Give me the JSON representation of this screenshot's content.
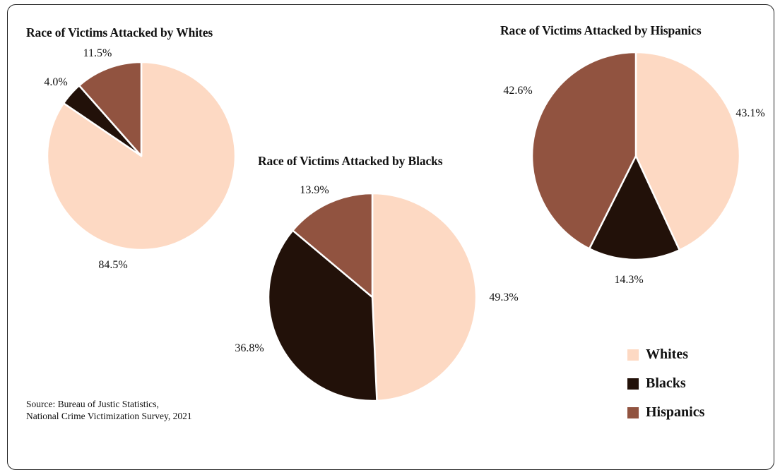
{
  "source": {
    "line1": "Source: Bureau of Justic Statistics,",
    "line2": "National Crime Victimization Survey, 2021"
  },
  "colors": {
    "Whites": "#FDD9C3",
    "Blacks": "#221109",
    "Hispanics": "#915340"
  },
  "legend": [
    "Whites",
    "Blacks",
    "Hispanics"
  ],
  "chart_data": [
    {
      "type": "pie",
      "title": "Race of Victims Attacked by Whites",
      "categories": [
        "Whites",
        "Blacks",
        "Hispanics"
      ],
      "values": [
        84.5,
        4.0,
        11.5
      ],
      "labels": [
        "84.5%",
        "4.0%",
        "11.5%"
      ]
    },
    {
      "type": "pie",
      "title": "Race of Victims Attacked by Blacks",
      "categories": [
        "Whites",
        "Blacks",
        "Hispanics"
      ],
      "values": [
        49.3,
        36.8,
        13.9
      ],
      "labels": [
        "49.3%",
        "36.8%",
        "13.9%"
      ]
    },
    {
      "type": "pie",
      "title": "Race of Victims Attacked by Hispanics",
      "categories": [
        "Whites",
        "Blacks",
        "Hispanics"
      ],
      "values": [
        43.1,
        14.3,
        42.6
      ],
      "labels": [
        "43.1%",
        "14.3%",
        "42.6%"
      ]
    }
  ]
}
